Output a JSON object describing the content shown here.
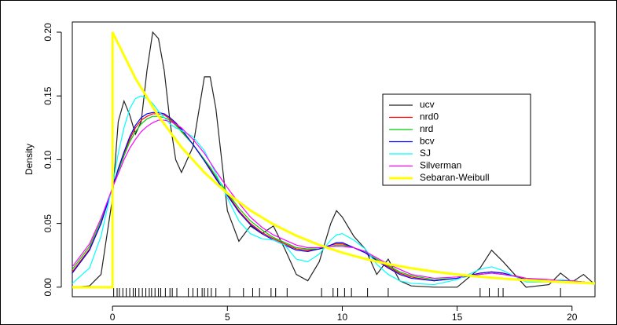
{
  "chart_data": {
    "type": "line",
    "y_label": "Density",
    "xlim": [
      -1.75,
      21.0
    ],
    "ylim": [
      -0.0075,
      0.208
    ],
    "xticks": [
      0,
      5,
      10,
      15,
      20
    ],
    "yticks": [
      {
        "value": 0,
        "label": "0.00"
      },
      {
        "value": 0.05,
        "label": "0.05"
      },
      {
        "value": 0.1,
        "label": "0.10"
      },
      {
        "value": 0.15,
        "label": "0.15"
      },
      {
        "value": 0.2,
        "label": "0.20"
      }
    ],
    "x": [
      -1.75,
      -1,
      -0.5,
      0,
      0.25,
      0.5,
      0.75,
      1,
      1.25,
      1.5,
      1.75,
      2,
      2.25,
      2.5,
      2.75,
      3,
      3.5,
      4,
      4.25,
      4.5,
      5,
      5.5,
      6,
      6.5,
      7,
      7.5,
      8,
      8.5,
      9,
      9.5,
      9.75,
      10,
      10.5,
      11,
      11.5,
      12,
      12.5,
      13,
      14,
      15,
      16,
      16.5,
      17,
      18,
      19,
      19.5,
      20,
      20.5,
      21
    ],
    "series": [
      {
        "name": "ucv",
        "color": "#222222",
        "values": [
          0,
          0.001,
          0.01,
          0.07,
          0.13,
          0.146,
          0.135,
          0.12,
          0.13,
          0.17,
          0.2,
          0.195,
          0.17,
          0.13,
          0.1,
          0.09,
          0.11,
          0.165,
          0.165,
          0.14,
          0.06,
          0.036,
          0.048,
          0.042,
          0.048,
          0.03,
          0.01,
          0.005,
          0.02,
          0.05,
          0.06,
          0.055,
          0.04,
          0.03,
          0.01,
          0.022,
          0.005,
          0.001,
          0,
          0,
          0.015,
          0.029,
          0.02,
          0,
          0.002,
          0.011,
          0.004,
          0.01,
          0.002
        ]
      },
      {
        "name": "nrd0",
        "color": "#ff0000",
        "values": [
          0.012,
          0.03,
          0.05,
          0.078,
          0.092,
          0.105,
          0.116,
          0.125,
          0.131,
          0.134,
          0.136,
          0.136,
          0.135,
          0.132,
          0.128,
          0.123,
          0.112,
          0.1,
          0.093,
          0.086,
          0.073,
          0.06,
          0.05,
          0.043,
          0.038,
          0.034,
          0.03,
          0.029,
          0.03,
          0.033,
          0.034,
          0.034,
          0.031,
          0.027,
          0.021,
          0.016,
          0.011,
          0.008,
          0.005,
          0.007,
          0.011,
          0.012,
          0.011,
          0.007,
          0.005,
          0.005,
          0.005,
          0.004,
          0.003
        ]
      },
      {
        "name": "nrd",
        "color": "#00cd00",
        "values": [
          0.014,
          0.032,
          0.052,
          0.078,
          0.091,
          0.103,
          0.114,
          0.122,
          0.128,
          0.132,
          0.134,
          0.134,
          0.133,
          0.131,
          0.127,
          0.122,
          0.112,
          0.1,
          0.094,
          0.087,
          0.074,
          0.062,
          0.052,
          0.045,
          0.039,
          0.035,
          0.031,
          0.03,
          0.03,
          0.032,
          0.033,
          0.033,
          0.031,
          0.027,
          0.022,
          0.017,
          0.012,
          0.009,
          0.006,
          0.007,
          0.01,
          0.011,
          0.01,
          0.007,
          0.005,
          0.005,
          0.005,
          0.004,
          0.003
        ]
      },
      {
        "name": "bcv",
        "color": "#0000ff",
        "values": [
          0.011,
          0.029,
          0.05,
          0.078,
          0.093,
          0.106,
          0.118,
          0.127,
          0.133,
          0.136,
          0.137,
          0.137,
          0.136,
          0.133,
          0.129,
          0.124,
          0.112,
          0.099,
          0.092,
          0.085,
          0.072,
          0.059,
          0.049,
          0.042,
          0.037,
          0.033,
          0.029,
          0.028,
          0.03,
          0.033,
          0.035,
          0.035,
          0.031,
          0.027,
          0.021,
          0.015,
          0.01,
          0.007,
          0.005,
          0.007,
          0.011,
          0.012,
          0.011,
          0.006,
          0.005,
          0.005,
          0.005,
          0.004,
          0.003
        ]
      },
      {
        "name": "SJ",
        "color": "#00ffff",
        "values": [
          0.003,
          0.015,
          0.04,
          0.08,
          0.105,
          0.125,
          0.14,
          0.148,
          0.15,
          0.148,
          0.144,
          0.138,
          0.133,
          0.128,
          0.125,
          0.123,
          0.118,
          0.107,
          0.098,
          0.089,
          0.07,
          0.052,
          0.042,
          0.038,
          0.037,
          0.033,
          0.022,
          0.02,
          0.026,
          0.037,
          0.041,
          0.042,
          0.037,
          0.03,
          0.018,
          0.01,
          0.005,
          0.003,
          0.002,
          0.006,
          0.014,
          0.016,
          0.013,
          0.004,
          0.004,
          0.006,
          0.005,
          0.004,
          0.002
        ]
      },
      {
        "name": "Silverman",
        "color": "#ff00ff",
        "values": [
          0.016,
          0.034,
          0.054,
          0.078,
          0.089,
          0.1,
          0.109,
          0.116,
          0.122,
          0.126,
          0.129,
          0.131,
          0.131,
          0.13,
          0.128,
          0.125,
          0.116,
          0.105,
          0.098,
          0.091,
          0.078,
          0.066,
          0.055,
          0.047,
          0.041,
          0.037,
          0.033,
          0.031,
          0.031,
          0.032,
          0.032,
          0.032,
          0.031,
          0.028,
          0.023,
          0.018,
          0.014,
          0.01,
          0.007,
          0.008,
          0.01,
          0.011,
          0.01,
          0.007,
          0.006,
          0.005,
          0.005,
          0.004,
          0.003
        ]
      },
      {
        "name": "Sebaran-Weibull",
        "color": "#ffff00",
        "width": 3,
        "x": [
          -1.75,
          0,
          0,
          1,
          2,
          3,
          4,
          5,
          6,
          7,
          8,
          9,
          10,
          11,
          12,
          13,
          14,
          15,
          16,
          17,
          18,
          19,
          20,
          21
        ],
        "values": [
          0,
          0,
          0.2,
          0.1637,
          0.1341,
          0.1098,
          0.0899,
          0.0736,
          0.0602,
          0.0493,
          0.0404,
          0.0331,
          0.0271,
          0.0222,
          0.0181,
          0.0149,
          0.0122,
          0.01,
          0.0082,
          0.0067,
          0.0055,
          0.0045,
          0.0037,
          0.003
        ]
      }
    ],
    "rug": [
      0.05,
      0.2,
      0.3,
      0.45,
      0.6,
      0.75,
      0.9,
      1.0,
      1.15,
      1.3,
      1.45,
      1.6,
      1.7,
      1.85,
      2.0,
      2.1,
      2.3,
      2.5,
      2.6,
      2.8,
      3.3,
      3.5,
      3.7,
      3.9,
      4.0,
      4.15,
      4.3,
      4.5,
      5.1,
      5.7,
      6.1,
      6.4,
      6.9,
      7.1,
      7.6,
      9.1,
      9.6,
      9.8,
      10.1,
      10.4,
      11.1,
      12.0,
      16.0,
      16.4,
      16.8,
      17.0,
      19.5,
      21.0
    ]
  }
}
